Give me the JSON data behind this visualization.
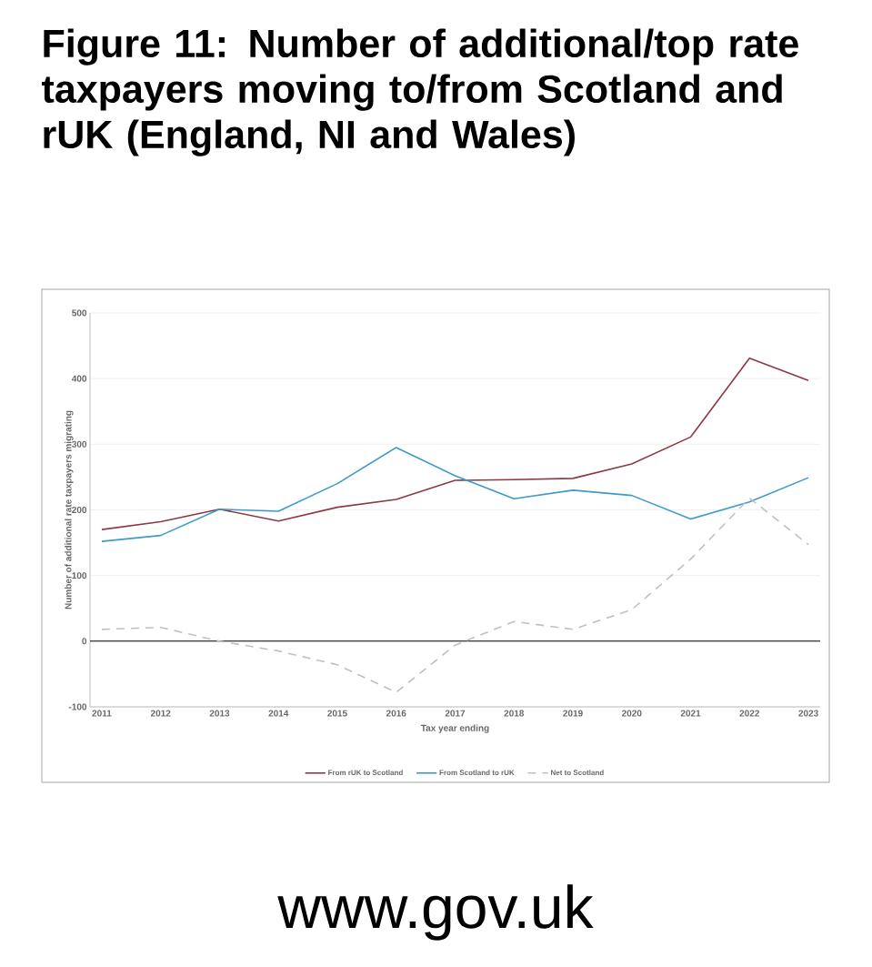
{
  "chart_data": {
    "type": "line",
    "title": "Figure 11: Number of additional/top rate taxpayers moving to/from Scotland and rUK (England, NI and Wales)",
    "xlabel": "Tax year ending",
    "ylabel": "Number of additional rate taxpayers migrating",
    "categories": [
      "2011",
      "2012",
      "2013",
      "2014",
      "2015",
      "2016",
      "2017",
      "2018",
      "2019",
      "2020",
      "2021",
      "2022",
      "2023"
    ],
    "series": [
      {
        "name": "From rUK to Scotland",
        "color": "#8b3a44",
        "line_style": "solid",
        "values": [
          170,
          182,
          201,
          183,
          204,
          216,
          245,
          246,
          248,
          270,
          311,
          431,
          397
        ]
      },
      {
        "name": "From Scotland to rUK",
        "color": "#3d9acb",
        "line_style": "solid",
        "values": [
          152,
          161,
          201,
          198,
          240,
          295,
          252,
          217,
          230,
          222,
          186,
          212,
          249
        ]
      },
      {
        "name": "Net to Scotland",
        "color": "#c0c0c0",
        "line_style": "dashed",
        "values": [
          18,
          21,
          0,
          -15,
          -36,
          -78,
          -6,
          30,
          18,
          48,
          125,
          218,
          147
        ]
      }
    ],
    "ylim": [
      -100,
      500
    ],
    "yticks": [
      -100,
      0,
      100,
      200,
      300,
      400,
      500
    ],
    "grid": "y",
    "legend": "bottom",
    "marker": "none",
    "ref_lines": [
      {
        "axis": "y",
        "value": 0,
        "color": "#000000",
        "line_style": "solid"
      }
    ],
    "annotations": [
      "www.gov.uk"
    ]
  }
}
